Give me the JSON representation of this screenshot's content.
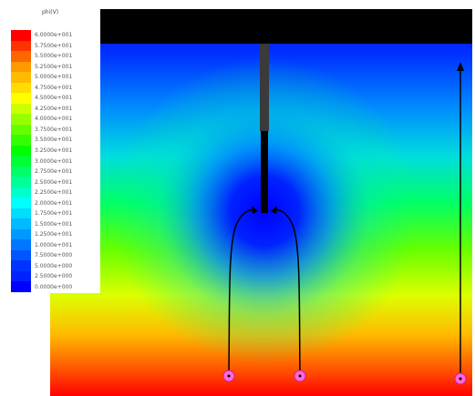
{
  "legend": {
    "title": "phi(V)",
    "labels": [
      "6.0000e+001",
      "5.7500e+001",
      "5.5000e+001",
      "5.2500e+001",
      "5.0000e+001",
      "4.7500e+001",
      "4.5000e+001",
      "4.2500e+001",
      "4.0000e+001",
      "3.7500e+001",
      "3.5000e+001",
      "3.2500e+001",
      "3.0000e+001",
      "2.7500e+001",
      "2.5000e+001",
      "2.2500e+001",
      "2.0000e+001",
      "1.7500e+001",
      "1.5000e+001",
      "1.2500e+001",
      "1.0000e+001",
      "7.5000e+000",
      "5.0000e+000",
      "2.5000e+000",
      "0.0000e+000"
    ],
    "colors": [
      "#ff0000",
      "#ff3300",
      "#ff6600",
      "#ff9900",
      "#ffbb00",
      "#ffdd00",
      "#ffff00",
      "#ccff00",
      "#99ff00",
      "#66ff00",
      "#33ff00",
      "#00ff00",
      "#00ff33",
      "#00ff66",
      "#00ff99",
      "#00ffcc",
      "#00ffff",
      "#00ddff",
      "#00bbff",
      "#0099ff",
      "#0077ff",
      "#0055ff",
      "#0033ff",
      "#0022ff",
      "#0000ff"
    ]
  },
  "colors": {
    "electrode_plate": "#000000",
    "probe_insulated": "#3a3a3a",
    "probe_tip": "#000000",
    "trajectory": "#000000",
    "particle_fill": "#ff66dd"
  },
  "icons": [
    "particle-marker-icon",
    "arrow-head-icon"
  ]
}
